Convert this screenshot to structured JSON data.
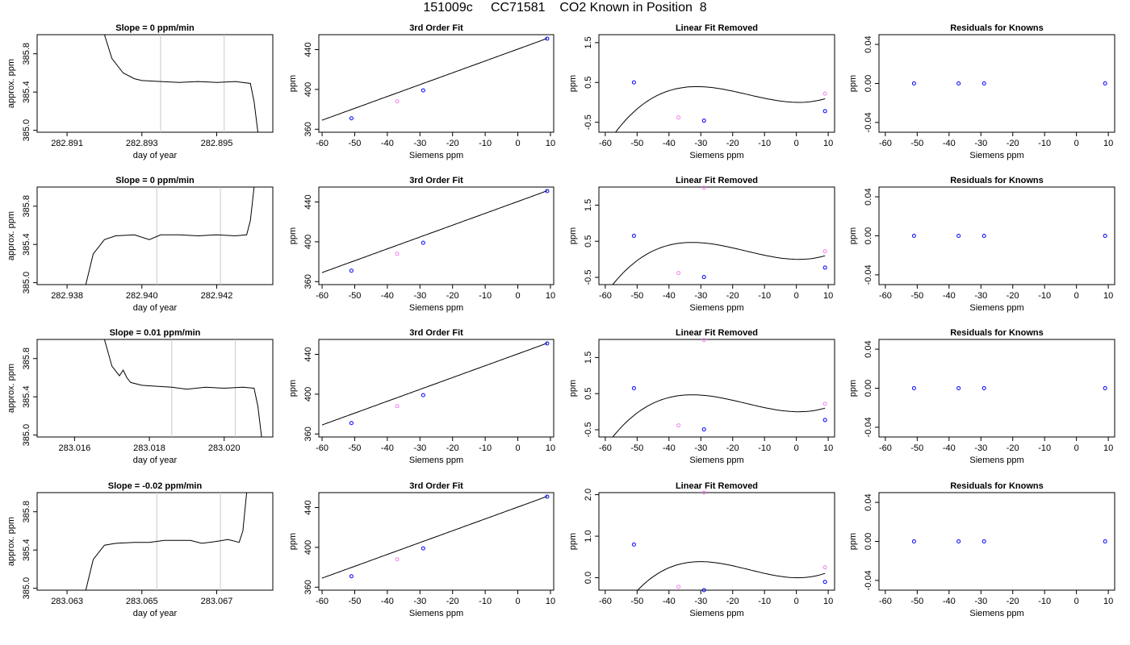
{
  "page": {
    "title": "151009c     CC71581    CO2 Known in Position  8"
  },
  "chart_data": [
    {
      "row": 0,
      "type": "line",
      "title": "Slope =  0  ppm/min",
      "xlabel": "day of year",
      "ylabel": "approx. ppm",
      "xlim": [
        282.8902,
        282.8965
      ],
      "ylim": [
        384.98,
        386.0
      ],
      "xticks": [
        "282.891",
        "282.893",
        "282.895"
      ],
      "yticks": [
        "385.0",
        "385.4",
        "385.8"
      ],
      "vlines": [
        282.8935,
        282.8952
      ],
      "series": [
        {
          "name": "",
          "x": [
            282.892,
            282.8922,
            282.8925,
            282.8928,
            282.893,
            282.8935,
            282.894,
            282.8945,
            282.895,
            282.8955,
            282.8959,
            282.896,
            282.8961
          ],
          "y": [
            386.0,
            385.75,
            385.6,
            385.54,
            385.52,
            385.51,
            385.5,
            385.51,
            385.5,
            385.51,
            385.49,
            385.3,
            384.98
          ]
        }
      ]
    },
    {
      "row": 0,
      "type": "scatter",
      "title": "3rd Order Fit",
      "xlabel": "Siemens ppm",
      "ylabel": "ppm",
      "xlim": [
        -61,
        11
      ],
      "ylim": [
        357,
        455
      ],
      "xticks": [
        "-60",
        "-50",
        "-40",
        "-30",
        "-20",
        "-10",
        "0",
        "10"
      ],
      "yticks": [
        "360",
        "400",
        "440"
      ],
      "points": [
        {
          "x": -51,
          "y": 371,
          "c": "blue"
        },
        {
          "x": -37,
          "y": 388,
          "c": "violet"
        },
        {
          "x": -29,
          "y": 399,
          "c": "blue"
        },
        {
          "x": 9,
          "y": 451,
          "c": "blue"
        }
      ],
      "curve": "line",
      "curve_range": [
        -60,
        9
      ],
      "curve_coeffs": [
        440.5,
        1.19
      ]
    },
    {
      "row": 0,
      "type": "scatter",
      "title": "Linear Fit Removed",
      "xlabel": "Siemens ppm",
      "ylabel": "ppm",
      "xlim": [
        -62,
        12
      ],
      "ylim": [
        -0.75,
        1.7
      ],
      "xticks": [
        "-60",
        "-50",
        "-40",
        "-30",
        "-20",
        "-10",
        "0",
        "10"
      ],
      "yticks": [
        "-0.5",
        "0.5",
        "1.5"
      ],
      "points": [
        {
          "x": -51,
          "y": 0.5,
          "c": "blue"
        },
        {
          "x": -37,
          "y": -0.38,
          "c": "violet"
        },
        {
          "x": -29,
          "y": -0.46,
          "c": "blue"
        },
        {
          "x": 9,
          "y": -0.22,
          "c": "blue"
        },
        {
          "x": 9,
          "y": 0.22,
          "c": "violet"
        }
      ],
      "curve": "cubic",
      "curve_range": [
        -59.5,
        9
      ],
      "curve_coeffs": [
        0.0,
        -0.0017,
        0.0011,
        2.4e-05
      ]
    },
    {
      "row": 0,
      "type": "scatter",
      "title": "Residuals for Knowns",
      "xlabel": "Siemens ppm",
      "ylabel": "ppm",
      "xlim": [
        -62,
        12
      ],
      "ylim": [
        -0.05,
        0.05
      ],
      "xticks": [
        "-60",
        "-50",
        "-40",
        "-30",
        "-20",
        "-10",
        "0",
        "10"
      ],
      "yticks": [
        "-0.04",
        "0.00",
        "0.04"
      ],
      "points": [
        {
          "x": -51,
          "y": 0,
          "c": "blue"
        },
        {
          "x": -37,
          "y": 0,
          "c": "blue"
        },
        {
          "x": -29,
          "y": 0,
          "c": "blue"
        },
        {
          "x": 9,
          "y": 0,
          "c": "blue"
        }
      ]
    },
    {
      "row": 1,
      "type": "line",
      "title": "Slope =  0  ppm/min",
      "xlabel": "day of year",
      "ylabel": "approx. ppm",
      "xlim": [
        282.9372,
        282.9435
      ],
      "ylim": [
        384.98,
        386.0
      ],
      "xticks": [
        "282.938",
        "282.940",
        "282.942"
      ],
      "yticks": [
        "385.0",
        "385.4",
        "385.8"
      ],
      "vlines": [
        282.9404,
        282.9421
      ],
      "series": [
        {
          "name": "",
          "x": [
            282.9385,
            282.9387,
            282.939,
            282.9393,
            282.9398,
            282.9402,
            282.9405,
            282.941,
            282.9415,
            282.942,
            282.9425,
            282.9428,
            282.9429,
            282.943
          ],
          "y": [
            384.98,
            385.3,
            385.45,
            385.49,
            385.5,
            385.45,
            385.5,
            385.5,
            385.49,
            385.5,
            385.49,
            385.5,
            385.65,
            386.0
          ]
        }
      ]
    },
    {
      "row": 1,
      "type": "scatter",
      "title": "3rd Order Fit",
      "xlabel": "Siemens ppm",
      "ylabel": "ppm",
      "xlim": [
        -61,
        11
      ],
      "ylim": [
        357,
        455
      ],
      "xticks": [
        "-60",
        "-50",
        "-40",
        "-30",
        "-20",
        "-10",
        "0",
        "10"
      ],
      "yticks": [
        "360",
        "400",
        "440"
      ],
      "points": [
        {
          "x": -51,
          "y": 371,
          "c": "blue"
        },
        {
          "x": -37,
          "y": 388,
          "c": "violet"
        },
        {
          "x": -29,
          "y": 399,
          "c": "blue"
        },
        {
          "x": 9,
          "y": 451,
          "c": "blue"
        }
      ],
      "curve": "line",
      "curve_range": [
        -60,
        9
      ],
      "curve_coeffs": [
        440.5,
        1.19
      ]
    },
    {
      "row": 1,
      "type": "scatter",
      "title": "Linear Fit Removed",
      "xlabel": "Siemens ppm",
      "ylabel": "ppm",
      "xlim": [
        -62,
        12
      ],
      "ylim": [
        -0.7,
        2.0
      ],
      "xticks": [
        "-60",
        "-50",
        "-40",
        "-30",
        "-20",
        "-10",
        "0",
        "10"
      ],
      "yticks": [
        "-0.5",
        "0.5",
        "1.5"
      ],
      "points": [
        {
          "x": -51,
          "y": 0.65,
          "c": "blue"
        },
        {
          "x": -37,
          "y": -0.38,
          "c": "violet"
        },
        {
          "x": -29,
          "y": -0.49,
          "c": "blue"
        },
        {
          "x": 9,
          "y": -0.23,
          "c": "blue"
        },
        {
          "x": 9,
          "y": 0.22,
          "c": "violet"
        },
        {
          "x": -29,
          "y": 1.98,
          "c": "violet"
        }
      ],
      "curve": "cubic",
      "curve_range": [
        -59.5,
        9
      ],
      "curve_coeffs": [
        0.0,
        -0.0018,
        0.0012,
        2.5e-05
      ]
    },
    {
      "row": 1,
      "type": "scatter",
      "title": "Residuals for Knowns",
      "xlabel": "Siemens ppm",
      "ylabel": "ppm",
      "xlim": [
        -62,
        12
      ],
      "ylim": [
        -0.05,
        0.05
      ],
      "xticks": [
        "-60",
        "-50",
        "-40",
        "-30",
        "-20",
        "-10",
        "0",
        "10"
      ],
      "yticks": [
        "-0.04",
        "0.00",
        "0.04"
      ],
      "points": [
        {
          "x": -51,
          "y": 0,
          "c": "blue"
        },
        {
          "x": -37,
          "y": 0,
          "c": "blue"
        },
        {
          "x": -29,
          "y": 0,
          "c": "blue"
        },
        {
          "x": 9,
          "y": 0,
          "c": "blue"
        }
      ]
    },
    {
      "row": 2,
      "type": "line",
      "title": "Slope =  0.01  ppm/min",
      "xlabel": "day of year",
      "ylabel": "approx. ppm",
      "xlim": [
        283.015,
        283.0213
      ],
      "ylim": [
        384.98,
        386.0
      ],
      "xticks": [
        "283.016",
        "283.018",
        "283.020"
      ],
      "yticks": [
        "385.0",
        "385.4",
        "385.8"
      ],
      "vlines": [
        283.0186,
        283.0203
      ],
      "series": [
        {
          "name": "",
          "x": [
            283.0168,
            283.017,
            283.0172,
            283.0173,
            283.0174,
            283.0175,
            283.0178,
            283.0182,
            283.0186,
            283.019,
            283.0195,
            283.02,
            283.0205,
            283.0208,
            283.0209,
            283.021
          ],
          "y": [
            386.0,
            385.72,
            385.62,
            385.68,
            385.6,
            385.55,
            385.52,
            385.51,
            385.5,
            385.48,
            385.5,
            385.49,
            385.5,
            385.49,
            385.3,
            384.98
          ]
        }
      ]
    },
    {
      "row": 2,
      "type": "scatter",
      "title": "3rd Order Fit",
      "xlabel": "Siemens ppm",
      "ylabel": "ppm",
      "xlim": [
        -61,
        11
      ],
      "ylim": [
        357,
        455
      ],
      "xticks": [
        "-60",
        "-50",
        "-40",
        "-30",
        "-20",
        "-10",
        "0",
        "10"
      ],
      "yticks": [
        "360",
        "400",
        "440"
      ],
      "points": [
        {
          "x": -51,
          "y": 371,
          "c": "blue"
        },
        {
          "x": -37,
          "y": 388,
          "c": "violet"
        },
        {
          "x": -29,
          "y": 399,
          "c": "blue"
        },
        {
          "x": 9,
          "y": 451,
          "c": "blue"
        }
      ],
      "curve": "line",
      "curve_range": [
        -60,
        9
      ],
      "curve_coeffs": [
        440.5,
        1.19
      ]
    },
    {
      "row": 2,
      "type": "scatter",
      "title": "Linear Fit Removed",
      "xlabel": "Siemens ppm",
      "ylabel": "ppm",
      "xlim": [
        -62,
        12
      ],
      "ylim": [
        -0.7,
        2.0
      ],
      "xticks": [
        "-60",
        "-50",
        "-40",
        "-30",
        "-20",
        "-10",
        "0",
        "10"
      ],
      "yticks": [
        "-0.5",
        "0.5",
        "1.5"
      ],
      "points": [
        {
          "x": -51,
          "y": 0.65,
          "c": "blue"
        },
        {
          "x": -37,
          "y": -0.38,
          "c": "violet"
        },
        {
          "x": -29,
          "y": -0.49,
          "c": "blue"
        },
        {
          "x": 9,
          "y": -0.23,
          "c": "blue"
        },
        {
          "x": 9,
          "y": 0.22,
          "c": "violet"
        },
        {
          "x": -29,
          "y": 1.98,
          "c": "violet"
        }
      ],
      "curve": "cubic",
      "curve_range": [
        -59.5,
        9
      ],
      "curve_coeffs": [
        0.0,
        -0.0018,
        0.0012,
        2.5e-05
      ]
    },
    {
      "row": 2,
      "type": "scatter",
      "title": "Residuals for Knowns",
      "xlabel": "Siemens ppm",
      "ylabel": "ppm",
      "xlim": [
        -62,
        12
      ],
      "ylim": [
        -0.05,
        0.05
      ],
      "xticks": [
        "-60",
        "-50",
        "-40",
        "-30",
        "-20",
        "-10",
        "0",
        "10"
      ],
      "yticks": [
        "-0.04",
        "0.00",
        "0.04"
      ],
      "points": [
        {
          "x": -51,
          "y": 0,
          "c": "blue"
        },
        {
          "x": -37,
          "y": 0,
          "c": "blue"
        },
        {
          "x": -29,
          "y": 0,
          "c": "blue"
        },
        {
          "x": 9,
          "y": 0,
          "c": "blue"
        }
      ]
    },
    {
      "row": 3,
      "type": "line",
      "title": "Slope =  -0.02  ppm/min",
      "xlabel": "day of year",
      "ylabel": "approx. ppm",
      "xlim": [
        283.0622,
        283.0685
      ],
      "ylim": [
        384.98,
        386.0
      ],
      "xticks": [
        "283.063",
        "283.065",
        "283.067"
      ],
      "yticks": [
        "385.0",
        "385.4",
        "385.8"
      ],
      "vlines": [
        283.0654,
        283.0671
      ],
      "series": [
        {
          "name": "",
          "x": [
            283.0635,
            283.0637,
            283.064,
            283.0643,
            283.0648,
            283.0652,
            283.0656,
            283.066,
            283.0663,
            283.0666,
            283.067,
            283.0673,
            283.0676,
            283.0677,
            283.0678
          ],
          "y": [
            384.98,
            385.3,
            385.45,
            385.47,
            385.48,
            385.48,
            385.5,
            385.5,
            385.5,
            385.47,
            385.49,
            385.51,
            385.48,
            385.6,
            386.0
          ]
        }
      ]
    },
    {
      "row": 3,
      "type": "scatter",
      "title": "3rd Order Fit",
      "xlabel": "Siemens ppm",
      "ylabel": "ppm",
      "xlim": [
        -61,
        11
      ],
      "ylim": [
        357,
        455
      ],
      "xticks": [
        "-60",
        "-50",
        "-40",
        "-30",
        "-20",
        "-10",
        "0",
        "10"
      ],
      "yticks": [
        "360",
        "400",
        "440"
      ],
      "points": [
        {
          "x": -51,
          "y": 371,
          "c": "blue"
        },
        {
          "x": -37,
          "y": 388,
          "c": "violet"
        },
        {
          "x": -29,
          "y": 399,
          "c": "blue"
        },
        {
          "x": 9,
          "y": 451,
          "c": "blue"
        }
      ],
      "curve": "line",
      "curve_range": [
        -60,
        9
      ],
      "curve_coeffs": [
        440.5,
        1.19
      ]
    },
    {
      "row": 3,
      "type": "scatter",
      "title": "Linear Fit Removed",
      "xlabel": "Siemens ppm",
      "ylabel": "ppm",
      "xlim": [
        -62,
        12
      ],
      "ylim": [
        -0.3,
        2.05
      ],
      "xticks": [
        "-60",
        "-50",
        "-40",
        "-30",
        "-20",
        "-10",
        "0",
        "10"
      ],
      "yticks": [
        "0.0",
        "1.0",
        "2.0"
      ],
      "points": [
        {
          "x": -51,
          "y": 0.8,
          "c": "blue"
        },
        {
          "x": -37,
          "y": -0.22,
          "c": "violet"
        },
        {
          "x": -29,
          "y": -0.3,
          "c": "blue"
        },
        {
          "x": 9,
          "y": -0.1,
          "c": "blue"
        },
        {
          "x": 9,
          "y": 0.25,
          "c": "violet"
        },
        {
          "x": -29,
          "y": 2.05,
          "c": "violet"
        }
      ],
      "curve": "cubic",
      "curve_range": [
        -59.5,
        9
      ],
      "curve_coeffs": [
        0.0,
        -0.0012,
        0.0012,
        2.7e-05
      ]
    },
    {
      "row": 3,
      "type": "scatter",
      "title": "Residuals for Knowns",
      "xlabel": "Siemens ppm",
      "ylabel": "ppm",
      "xlim": [
        -62,
        12
      ],
      "ylim": [
        -0.05,
        0.05
      ],
      "xticks": [
        "-60",
        "-50",
        "-40",
        "-30",
        "-20",
        "-10",
        "0",
        "10"
      ],
      "yticks": [
        "-0.04",
        "0.00",
        "0.04"
      ],
      "points": [
        {
          "x": -51,
          "y": 0,
          "c": "blue"
        },
        {
          "x": -37,
          "y": 0,
          "c": "blue"
        },
        {
          "x": -29,
          "y": 0,
          "c": "blue"
        },
        {
          "x": 9,
          "y": 0,
          "c": "blue"
        }
      ]
    }
  ]
}
